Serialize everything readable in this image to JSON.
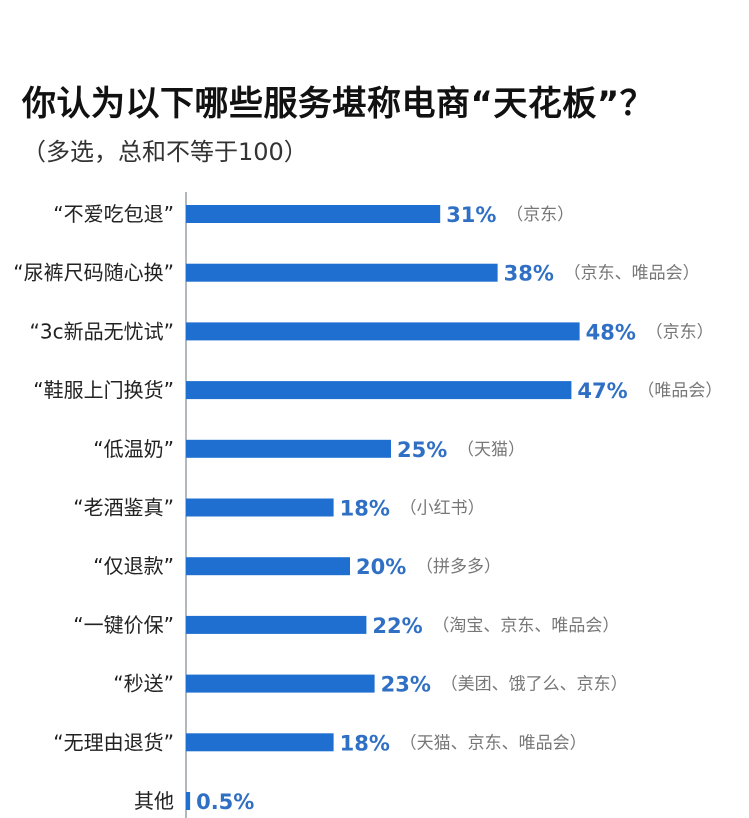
{
  "chart_data": {
    "type": "bar",
    "orientation": "horizontal",
    "title": "你认为以下哪些服务堪称电商“天花板”？",
    "subtitle": "（多选，总和不等于100）",
    "bar_color": "#1f6fd1",
    "value_label_color": "#2f6fc4",
    "categories": [
      "“不爱吃包退”",
      "“尿裤尺码随心换”",
      "“3c新品无忧试”",
      "“鞋服上门换货”",
      "“低温奶”",
      "“老酒鉴真”",
      "“仅退款”",
      "“一键价保”",
      "“秒送”",
      "“无理由退货”",
      "其他"
    ],
    "values": [
      31,
      38,
      48,
      47,
      25,
      18,
      20,
      22,
      23,
      18,
      0.5
    ],
    "value_labels": [
      "31%",
      "38%",
      "48%",
      "47%",
      "25%",
      "18%",
      "20%",
      "22%",
      "23%",
      "18%",
      "0.5%"
    ],
    "annotations": [
      "（京东）",
      "（京东、唯品会）",
      "（京东）",
      "（唯品会）",
      "（天猫）",
      "（小红书）",
      "（拼多多）",
      "（淘宝、京东、唯品会）",
      "（美团、饿了么、京东）",
      "（天猫、京东、唯品会）",
      ""
    ]
  }
}
